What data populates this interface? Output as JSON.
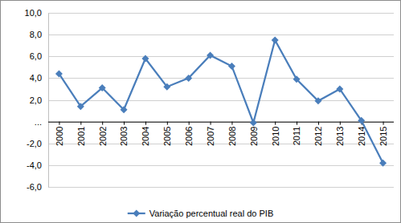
{
  "chart_data": {
    "type": "line",
    "categories": [
      "2000",
      "2001",
      "2002",
      "2003",
      "2004",
      "2005",
      "2006",
      "2007",
      "2008",
      "2009",
      "2010",
      "2011",
      "2012",
      "2013",
      "2014",
      "2015"
    ],
    "series": [
      {
        "name": "Variação percentual real do PIB",
        "color": "#4a7ebb",
        "marker": "diamond",
        "values": [
          4.4,
          1.4,
          3.1,
          1.1,
          5.8,
          3.2,
          4.0,
          6.1,
          5.1,
          -0.1,
          7.5,
          3.9,
          1.9,
          3.0,
          0.1,
          -3.8
        ]
      }
    ],
    "ylim": [
      -6,
      10
    ],
    "yticks": [
      {
        "value": -6,
        "label": "-6,0"
      },
      {
        "value": -4,
        "label": "-4,0"
      },
      {
        "value": -2,
        "label": "-2,0"
      },
      {
        "value": 0,
        "label": "..."
      },
      {
        "value": 2,
        "label": "2,0"
      },
      {
        "value": 4,
        "label": "4,0"
      },
      {
        "value": 6,
        "label": "6,0"
      },
      {
        "value": 8,
        "label": "8,0"
      },
      {
        "value": 10,
        "label": "10,0"
      }
    ],
    "grid": true,
    "legend": "bottom"
  }
}
